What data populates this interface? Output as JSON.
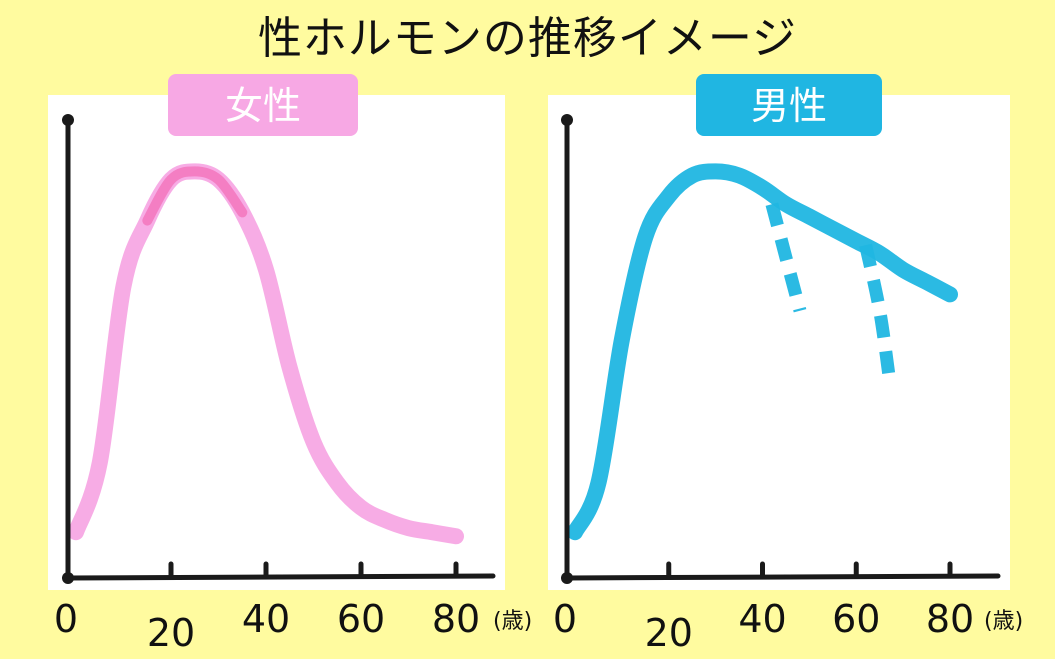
{
  "title": "性ホルモンの推移イメージ",
  "colors": {
    "background": "#fffb9f",
    "female": "#f7a8e4",
    "female_peak": "#f25aa8",
    "male": "#20b6e2",
    "axis": "#1a1a1a"
  },
  "chart_data": [
    {
      "type": "line",
      "label": "女性",
      "x_unit": "(歳)",
      "x_ticks": [
        "0",
        "20",
        "40",
        "60",
        "80"
      ],
      "xlim": [
        0,
        80
      ],
      "ylim": [
        0,
        100
      ],
      "grid": false,
      "series": [
        {
          "style": "solid",
          "x": [
            0,
            5,
            10,
            15,
            20,
            25,
            30,
            35,
            40,
            45,
            50,
            55,
            60,
            65,
            70,
            75,
            80
          ],
          "y": [
            8,
            25,
            68,
            84,
            94,
            96,
            94,
            86,
            72,
            48,
            30,
            20,
            14,
            11,
            9,
            8,
            7
          ]
        }
      ]
    },
    {
      "type": "line",
      "label": "男性",
      "x_unit": "(歳)",
      "x_ticks": [
        "0",
        "20",
        "40",
        "60",
        "80"
      ],
      "xlim": [
        0,
        80
      ],
      "ylim": [
        0,
        100
      ],
      "grid": false,
      "series": [
        {
          "style": "solid",
          "x": [
            0,
            5,
            10,
            15,
            20,
            25,
            30,
            35,
            40,
            45,
            50,
            55,
            60,
            65,
            70,
            75,
            80
          ],
          "y": [
            8,
            20,
            55,
            80,
            90,
            95,
            96,
            95,
            92,
            88,
            85,
            82,
            79,
            76,
            72,
            69,
            66
          ]
        },
        {
          "style": "dashed",
          "x": [
            42,
            45,
            48
          ],
          "y": [
            88,
            75,
            62
          ]
        },
        {
          "style": "dashed",
          "x": [
            62,
            65,
            67
          ],
          "y": [
            78,
            62,
            46
          ]
        }
      ]
    }
  ]
}
